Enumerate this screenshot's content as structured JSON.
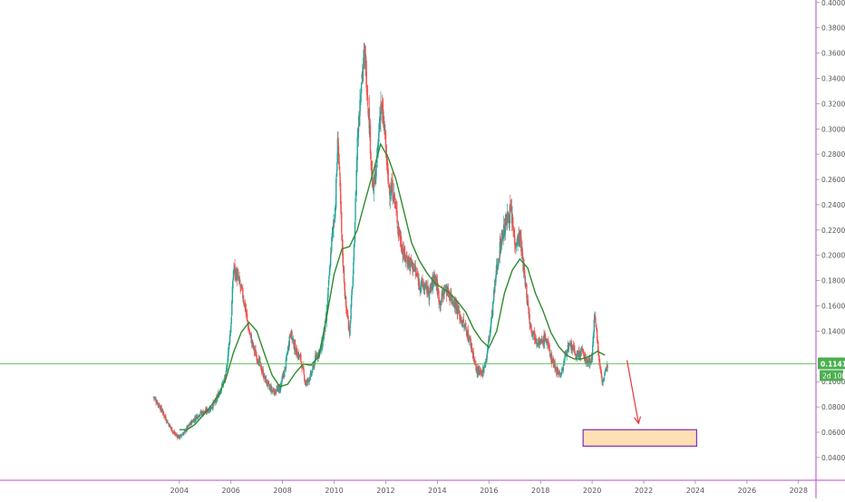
{
  "chart_data": {
    "type": "line",
    "title": "",
    "xlabel": "",
    "ylabel": "",
    "x_ticks": [
      "2004",
      "2006",
      "2008",
      "2010",
      "2012",
      "2014",
      "2016",
      "2018",
      "2020",
      "2022",
      "2024",
      "2026",
      "2028"
    ],
    "y_ticks": [
      "0.04000",
      "0.06000",
      "0.08000",
      "0.10000",
      "0.12000",
      "0.14000",
      "0.16000",
      "0.18000",
      "0.20000",
      "0.22000",
      "0.24000",
      "0.26000",
      "0.28000",
      "0.30000",
      "0.32000",
      "0.34000",
      "0.36000",
      "0.38000",
      "0.40000"
    ],
    "xlim": [
      2003.0,
      2030.5
    ],
    "ylim": [
      0.022,
      0.402
    ],
    "grid": false,
    "colors": {
      "up_candle": "#26a69a",
      "down_candle": "#ef5350",
      "moving_average": "#2e8b2e",
      "price_line": "#5cbf5c",
      "price_label_bg": "#4caf50",
      "target_box_fill": "#ffe0b2",
      "target_box_border": "#7b2cbf",
      "arrow": "#e53935",
      "axis_border": "#b04fc4"
    },
    "last_price": {
      "value": 0.11416,
      "label": "0.11416",
      "countdown": "2d 10h"
    },
    "target_zone": {
      "x_start": 2019.65,
      "x_end": 2024.05,
      "y_low": 0.049,
      "y_high": 0.062
    },
    "projection_arrow": {
      "from": [
        2021.35,
        0.117
      ],
      "to": [
        2021.8,
        0.067
      ]
    },
    "series": [
      {
        "name": "",
        "kind": "price",
        "points": [
          [
            2003.0,
            0.088
          ],
          [
            2003.2,
            0.082
          ],
          [
            2003.4,
            0.074
          ],
          [
            2003.6,
            0.066
          ],
          [
            2003.8,
            0.059
          ],
          [
            2004.0,
            0.056
          ],
          [
            2004.2,
            0.06
          ],
          [
            2004.4,
            0.066
          ],
          [
            2004.6,
            0.071
          ],
          [
            2004.8,
            0.075
          ],
          [
            2005.0,
            0.076
          ],
          [
            2005.2,
            0.079
          ],
          [
            2005.4,
            0.084
          ],
          [
            2005.6,
            0.094
          ],
          [
            2005.8,
            0.104
          ],
          [
            2006.0,
            0.145
          ],
          [
            2006.1,
            0.19
          ],
          [
            2006.3,
            0.18
          ],
          [
            2006.5,
            0.165
          ],
          [
            2006.7,
            0.14
          ],
          [
            2006.9,
            0.125
          ],
          [
            2007.1,
            0.115
          ],
          [
            2007.3,
            0.103
          ],
          [
            2007.5,
            0.095
          ],
          [
            2007.7,
            0.092
          ],
          [
            2007.9,
            0.095
          ],
          [
            2008.1,
            0.11
          ],
          [
            2008.3,
            0.14
          ],
          [
            2008.5,
            0.125
          ],
          [
            2008.7,
            0.118
          ],
          [
            2008.9,
            0.098
          ],
          [
            2009.1,
            0.105
          ],
          [
            2009.3,
            0.12
          ],
          [
            2009.5,
            0.126
          ],
          [
            2009.7,
            0.15
          ],
          [
            2009.9,
            0.21
          ],
          [
            2010.05,
            0.24
          ],
          [
            2010.15,
            0.295
          ],
          [
            2010.3,
            0.21
          ],
          [
            2010.45,
            0.16
          ],
          [
            2010.6,
            0.14
          ],
          [
            2010.75,
            0.19
          ],
          [
            2010.9,
            0.29
          ],
          [
            2011.05,
            0.34
          ],
          [
            2011.2,
            0.358
          ],
          [
            2011.35,
            0.31
          ],
          [
            2011.5,
            0.25
          ],
          [
            2011.65,
            0.27
          ],
          [
            2011.8,
            0.32
          ],
          [
            2011.95,
            0.3
          ],
          [
            2012.1,
            0.255
          ],
          [
            2012.3,
            0.25
          ],
          [
            2012.5,
            0.22
          ],
          [
            2012.7,
            0.2
          ],
          [
            2012.9,
            0.195
          ],
          [
            2013.1,
            0.19
          ],
          [
            2013.3,
            0.178
          ],
          [
            2013.5,
            0.175
          ],
          [
            2013.7,
            0.17
          ],
          [
            2013.9,
            0.185
          ],
          [
            2014.1,
            0.162
          ],
          [
            2014.3,
            0.174
          ],
          [
            2014.5,
            0.168
          ],
          [
            2014.7,
            0.162
          ],
          [
            2014.9,
            0.15
          ],
          [
            2015.1,
            0.142
          ],
          [
            2015.3,
            0.13
          ],
          [
            2015.5,
            0.11
          ],
          [
            2015.7,
            0.105
          ],
          [
            2015.9,
            0.118
          ],
          [
            2016.1,
            0.15
          ],
          [
            2016.3,
            0.19
          ],
          [
            2016.5,
            0.215
          ],
          [
            2016.7,
            0.228
          ],
          [
            2016.85,
            0.235
          ],
          [
            2017.0,
            0.21
          ],
          [
            2017.2,
            0.215
          ],
          [
            2017.4,
            0.18
          ],
          [
            2017.6,
            0.145
          ],
          [
            2017.8,
            0.135
          ],
          [
            2018.0,
            0.13
          ],
          [
            2018.2,
            0.135
          ],
          [
            2018.4,
            0.12
          ],
          [
            2018.6,
            0.11
          ],
          [
            2018.8,
            0.105
          ],
          [
            2019.0,
            0.125
          ],
          [
            2019.2,
            0.128
          ],
          [
            2019.4,
            0.12
          ],
          [
            2019.6,
            0.124
          ],
          [
            2019.8,
            0.115
          ],
          [
            2020.0,
            0.118
          ],
          [
            2020.1,
            0.158
          ],
          [
            2020.25,
            0.12
          ],
          [
            2020.4,
            0.1
          ],
          [
            2020.5,
            0.105
          ],
          [
            2020.6,
            0.114
          ]
        ]
      },
      {
        "name": "",
        "kind": "moving_average",
        "points": [
          [
            2004.0,
            0.062
          ],
          [
            2004.3,
            0.062
          ],
          [
            2004.6,
            0.066
          ],
          [
            2004.9,
            0.073
          ],
          [
            2005.2,
            0.08
          ],
          [
            2005.5,
            0.089
          ],
          [
            2005.8,
            0.102
          ],
          [
            2006.1,
            0.123
          ],
          [
            2006.4,
            0.139
          ],
          [
            2006.7,
            0.147
          ],
          [
            2007.0,
            0.14
          ],
          [
            2007.3,
            0.122
          ],
          [
            2007.6,
            0.105
          ],
          [
            2007.9,
            0.096
          ],
          [
            2008.2,
            0.098
          ],
          [
            2008.5,
            0.107
          ],
          [
            2008.8,
            0.114
          ],
          [
            2009.1,
            0.113
          ],
          [
            2009.4,
            0.12
          ],
          [
            2009.7,
            0.15
          ],
          [
            2010.0,
            0.185
          ],
          [
            2010.3,
            0.205
          ],
          [
            2010.6,
            0.207
          ],
          [
            2010.9,
            0.22
          ],
          [
            2011.2,
            0.243
          ],
          [
            2011.5,
            0.265
          ],
          [
            2011.8,
            0.288
          ],
          [
            2012.1,
            0.277
          ],
          [
            2012.4,
            0.26
          ],
          [
            2012.7,
            0.235
          ],
          [
            2013.0,
            0.21
          ],
          [
            2013.3,
            0.196
          ],
          [
            2013.6,
            0.186
          ],
          [
            2013.9,
            0.178
          ],
          [
            2014.2,
            0.174
          ],
          [
            2014.5,
            0.17
          ],
          [
            2014.8,
            0.163
          ],
          [
            2015.1,
            0.155
          ],
          [
            2015.4,
            0.142
          ],
          [
            2015.7,
            0.133
          ],
          [
            2016.0,
            0.127
          ],
          [
            2016.3,
            0.14
          ],
          [
            2016.6,
            0.17
          ],
          [
            2016.9,
            0.188
          ],
          [
            2017.2,
            0.197
          ],
          [
            2017.5,
            0.19
          ],
          [
            2017.8,
            0.17
          ],
          [
            2018.1,
            0.156
          ],
          [
            2018.4,
            0.139
          ],
          [
            2018.7,
            0.128
          ],
          [
            2019.0,
            0.121
          ],
          [
            2019.3,
            0.118
          ],
          [
            2019.6,
            0.118
          ],
          [
            2019.9,
            0.12
          ],
          [
            2020.2,
            0.124
          ],
          [
            2020.5,
            0.121
          ]
        ]
      }
    ]
  }
}
